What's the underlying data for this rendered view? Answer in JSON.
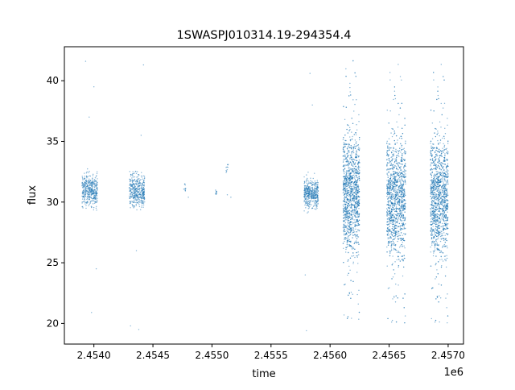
{
  "chart_data": {
    "type": "scatter",
    "title": "1SWASPJ010314.19-294354.4",
    "xlabel": "time",
    "ylabel": "flux",
    "x_offset_label": "1e6",
    "x_ticks": [
      2.454,
      2.4545,
      2.455,
      2.4555,
      2.456,
      2.4565,
      2.457
    ],
    "x_tick_labels": [
      "2.4540",
      "2.4545",
      "2.4550",
      "2.4555",
      "2.4560",
      "2.4565",
      "2.4570"
    ],
    "y_ticks": [
      20,
      25,
      30,
      35,
      40
    ],
    "y_tick_labels": [
      "20",
      "25",
      "30",
      "35",
      "40"
    ],
    "xlim": [
      2.45375,
      2.45713
    ],
    "ylim": [
      18.3,
      42.8
    ],
    "grid": false,
    "point_color": "#1f77b4",
    "series": [
      {
        "clusters": [
          {
            "x_range": [
              2.4539,
              2.45403
            ],
            "y_center": 31.0,
            "spread": 1.3,
            "density": "medium",
            "outliers": [
              [
                2.45393,
                41.6
              ],
              [
                2.45398,
                20.9
              ],
              [
                2.45402,
                24.5
              ],
              [
                2.454,
                39.5
              ],
              [
                2.45396,
                37.0
              ]
            ]
          },
          {
            "x_range": [
              2.4543,
              2.45443
            ],
            "y_center": 30.9,
            "spread": 1.3,
            "density": "medium",
            "outliers": [
              [
                2.45431,
                19.8
              ],
              [
                2.45438,
                19.5
              ],
              [
                2.45442,
                41.3
              ],
              [
                2.4544,
                35.5
              ],
              [
                2.45436,
                26.0
              ]
            ]
          },
          {
            "x_range": [
              2.45476,
              2.45478
            ],
            "y_center": 31.2,
            "spread": 0.4,
            "density": "sparse",
            "outliers": [
              [
                2.4548,
                30.4
              ]
            ]
          },
          {
            "x_range": [
              2.45503,
              2.45505
            ],
            "y_center": 30.8,
            "spread": 0.2,
            "density": "sparse",
            "outliers": []
          },
          {
            "x_range": [
              2.45512,
              2.45514
            ],
            "y_center": 32.9,
            "spread": 0.6,
            "density": "sparse",
            "outliers": [
              [
                2.45513,
                30.6
              ],
              [
                2.45516,
                30.4
              ]
            ]
          },
          {
            "x_range": [
              2.45578,
              2.4559
            ],
            "y_center": 30.7,
            "spread": 1.2,
            "density": "medium",
            "outliers": [
              [
                2.4558,
                19.4
              ],
              [
                2.45585,
                38.0
              ],
              [
                2.45583,
                40.6
              ],
              [
                2.45579,
                24.0
              ]
            ]
          },
          {
            "x_range": [
              2.45611,
              2.45625
            ],
            "y_center": 30.8,
            "spread": 5.5,
            "density": "dense",
            "outliers": []
          },
          {
            "x_range": [
              2.45648,
              2.45664
            ],
            "y_center": 30.5,
            "spread": 5.5,
            "density": "dense",
            "outliers": []
          },
          {
            "x_range": [
              2.45685,
              2.457
            ],
            "y_center": 30.5,
            "spread": 5.5,
            "density": "dense",
            "outliers": []
          }
        ]
      }
    ]
  }
}
